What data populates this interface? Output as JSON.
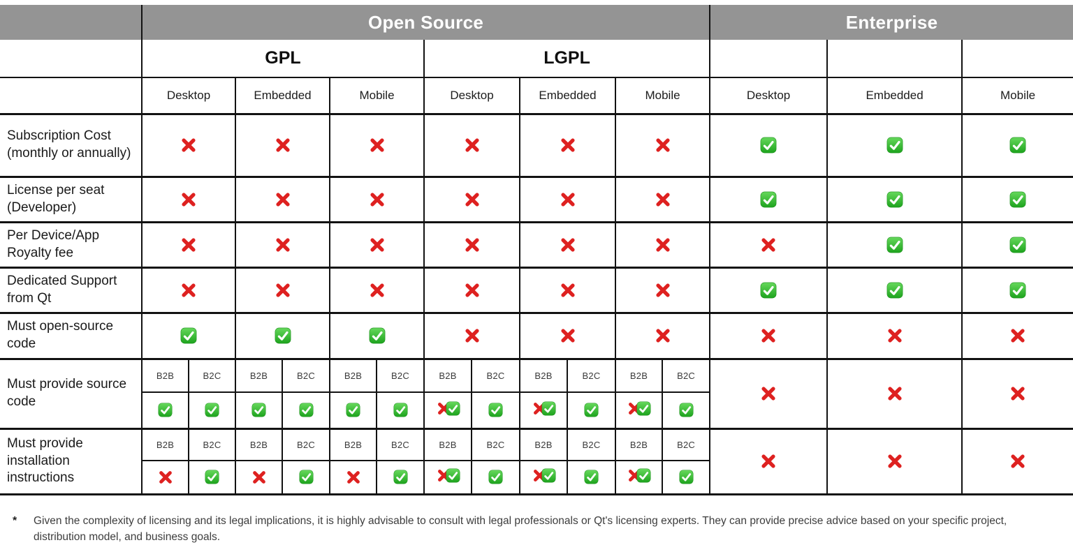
{
  "colors": {
    "header_bg": "#949494",
    "grid": "#121212",
    "check_green_top": "#66d85c",
    "check_green_bottom": "#1da31d",
    "check_border_green": "#1d8f1d",
    "cross_red": "#de2120"
  },
  "chart_data": {
    "type": "table",
    "top_headers": [
      {
        "label": "Open Source",
        "span": 6
      },
      {
        "label": "Enterprise",
        "span": 3
      }
    ],
    "license_groups": [
      {
        "label": "GPL",
        "span": 3
      },
      {
        "label": "LGPL",
        "span": 3
      }
    ],
    "platforms": [
      "Desktop",
      "Embedded",
      "Mobile"
    ],
    "sub_headers": [
      "B2B",
      "B2C"
    ],
    "rows": [
      {
        "label": "Subscription Cost (monthly or annually)",
        "split": false,
        "gpl": [
          "cross",
          "cross",
          "cross"
        ],
        "lgpl": [
          "cross",
          "cross",
          "cross"
        ],
        "enterprise": [
          "check",
          "check",
          "check"
        ]
      },
      {
        "label": "License per seat (Developer)",
        "split": false,
        "gpl": [
          "cross",
          "cross",
          "cross"
        ],
        "lgpl": [
          "cross",
          "cross",
          "cross"
        ],
        "enterprise": [
          "check",
          "check",
          "check"
        ]
      },
      {
        "label": "Per Device/App Royalty fee",
        "split": false,
        "gpl": [
          "cross",
          "cross",
          "cross"
        ],
        "lgpl": [
          "cross",
          "cross",
          "cross"
        ],
        "enterprise": [
          "cross",
          "check",
          "check"
        ]
      },
      {
        "label": "Dedicated Support from Qt",
        "split": false,
        "gpl": [
          "cross",
          "cross",
          "cross"
        ],
        "lgpl": [
          "cross",
          "cross",
          "cross"
        ],
        "enterprise": [
          "check",
          "check",
          "check"
        ]
      },
      {
        "label": "Must open-source code",
        "split": false,
        "gpl": [
          "check",
          "check",
          "check"
        ],
        "lgpl": [
          "cross",
          "cross",
          "cross"
        ],
        "enterprise": [
          "cross",
          "cross",
          "cross"
        ]
      },
      {
        "label": "Must provide source code",
        "split": true,
        "gpl": [
          [
            "check",
            "check"
          ],
          [
            "check",
            "check"
          ],
          [
            "check",
            "check"
          ]
        ],
        "lgpl": [
          [
            "cross_check",
            "check"
          ],
          [
            "cross_check",
            "check"
          ],
          [
            "cross_check",
            "check"
          ]
        ],
        "enterprise": [
          "cross",
          "cross",
          "cross"
        ]
      },
      {
        "label": "Must provide installation instructions",
        "split": true,
        "gpl": [
          [
            "cross",
            "check"
          ],
          [
            "cross",
            "check"
          ],
          [
            "cross",
            "check"
          ]
        ],
        "lgpl": [
          [
            "cross_check",
            "check"
          ],
          [
            "cross_check",
            "check"
          ],
          [
            "cross_check",
            "check"
          ]
        ],
        "enterprise": [
          "cross",
          "cross",
          "cross"
        ]
      }
    ]
  },
  "footnote": {
    "marker": "*",
    "text": "Given the complexity of licensing and its legal implications, it is highly advisable to consult with legal professionals or Qt's licensing experts. They can provide precise advice based on your specific project, distribution model, and business goals."
  }
}
